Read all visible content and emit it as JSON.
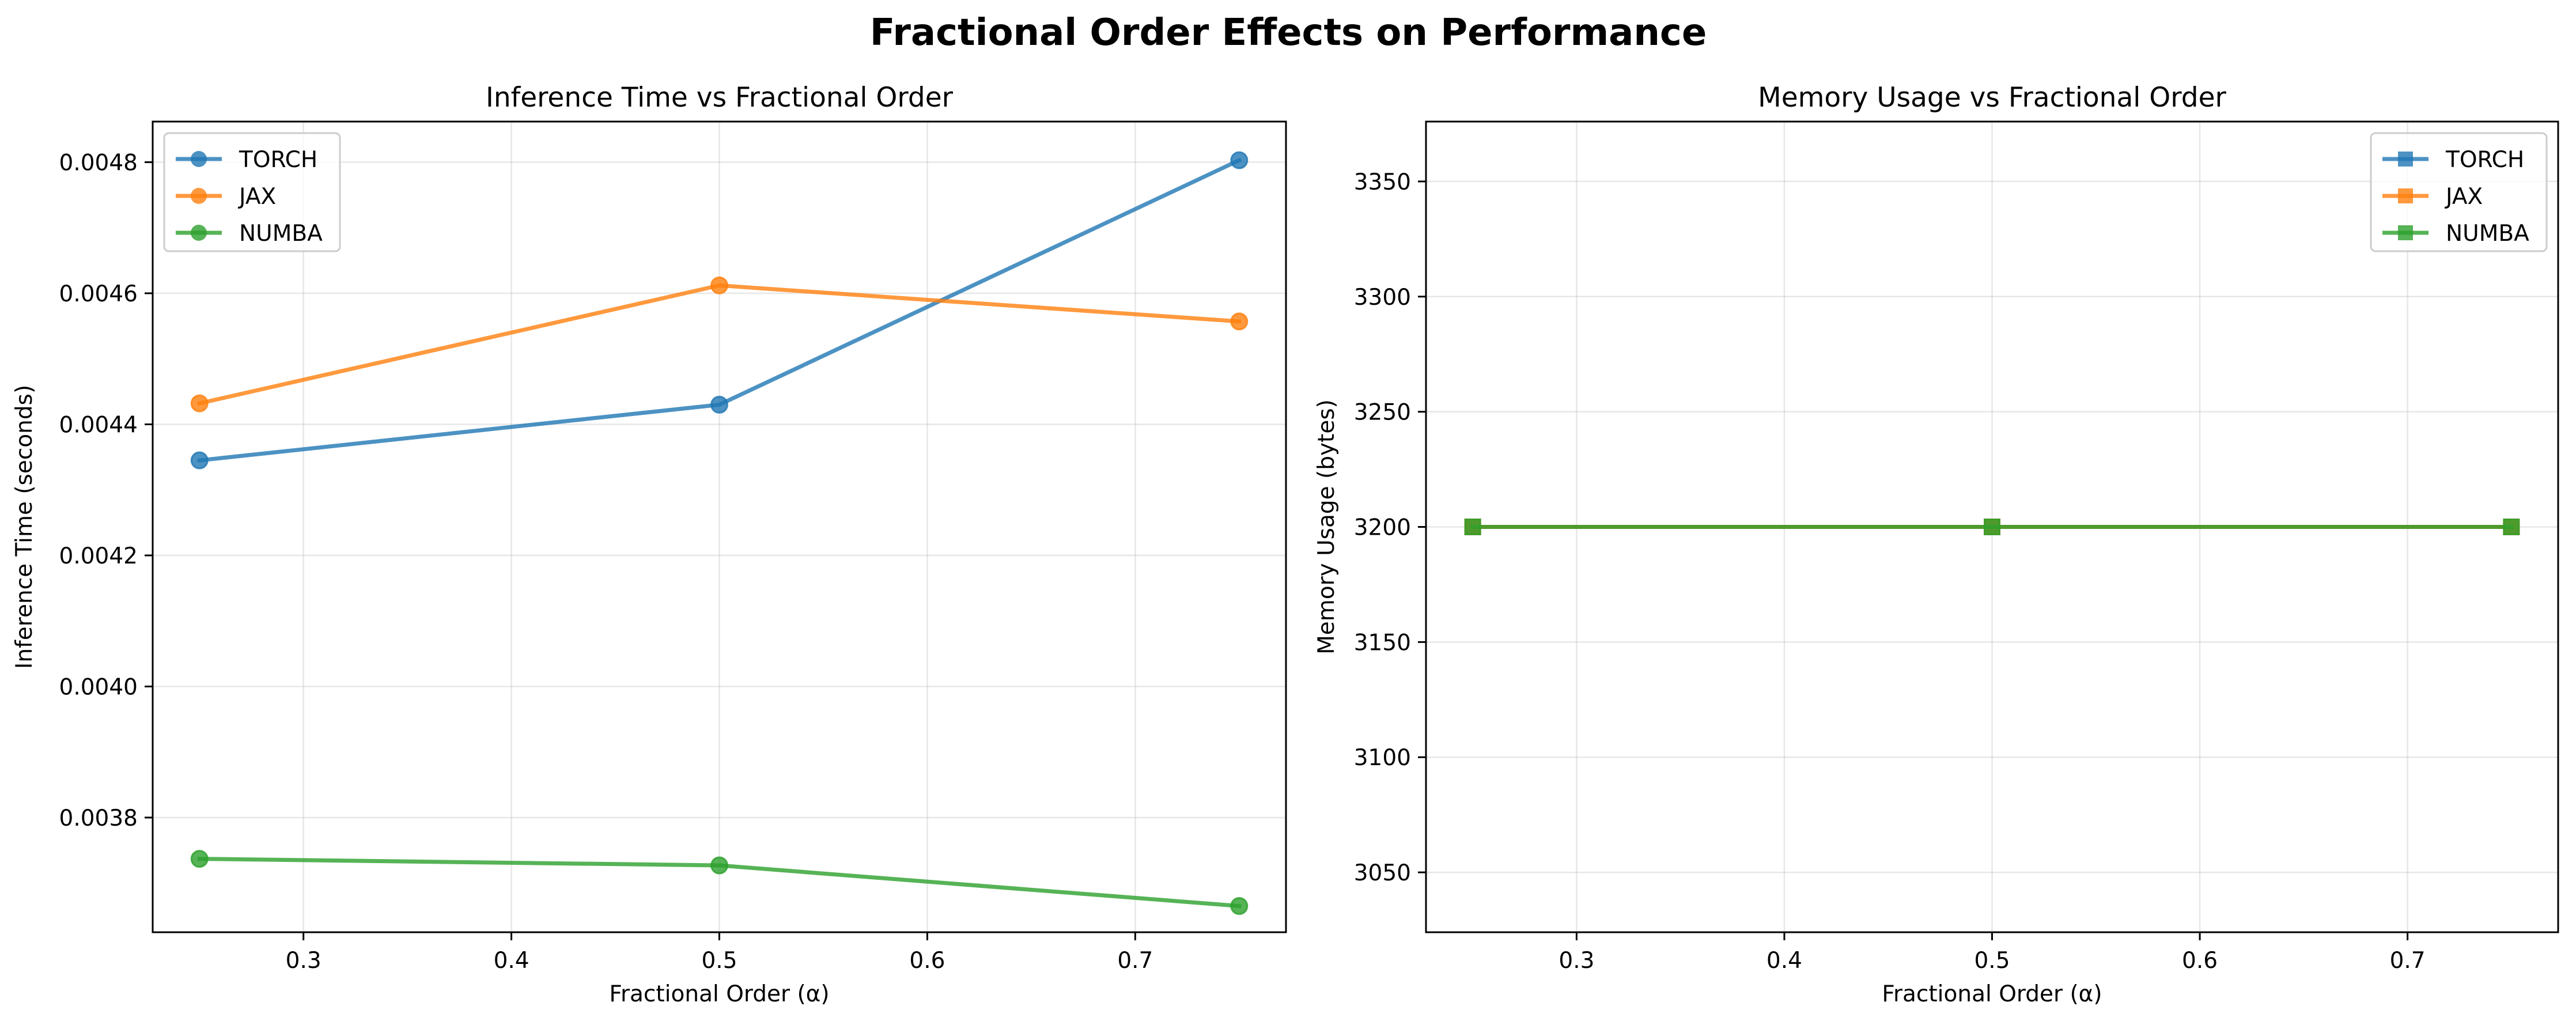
{
  "figure": {
    "suptitle": "Fractional Order Effects on Performance"
  },
  "chart_data": [
    {
      "type": "line",
      "title": "Inference Time vs Fractional Order",
      "xlabel": "Fractional Order (α)",
      "ylabel": "Inference Time (seconds)",
      "xlim": [
        0.2275,
        0.7725
      ],
      "ylim": [
        0.003625,
        0.004862
      ],
      "xticks": [
        0.3,
        0.4,
        0.5,
        0.6,
        0.7
      ],
      "xtick_labels": [
        "0.3",
        "0.4",
        "0.5",
        "0.6",
        "0.7"
      ],
      "yticks": [
        0.0038,
        0.004,
        0.0042,
        0.0044,
        0.0046,
        0.0048
      ],
      "ytick_labels": [
        "0.0038",
        "0.0040",
        "0.0042",
        "0.0044",
        "0.0046",
        "0.0048"
      ],
      "grid": true,
      "legend": "top-left",
      "marker": "circle",
      "x": [
        0.25,
        0.5,
        0.75
      ],
      "series": [
        {
          "name": "TORCH",
          "color": "#1f77b4",
          "values": [
            0.004345,
            0.00443,
            0.004803
          ]
        },
        {
          "name": "JAX",
          "color": "#ff7f0e",
          "values": [
            0.004432,
            0.004612,
            0.004557
          ]
        },
        {
          "name": "NUMBA",
          "color": "#2ca02c",
          "values": [
            0.003737,
            0.003727,
            0.003665
          ]
        }
      ]
    },
    {
      "type": "line",
      "title": "Memory Usage vs Fractional Order",
      "xlabel": "Fractional Order (α)",
      "ylabel": "Memory Usage (bytes)",
      "xlim": [
        0.2275,
        0.7725
      ],
      "ylim": [
        3024,
        3376
      ],
      "xticks": [
        0.3,
        0.4,
        0.5,
        0.6,
        0.7
      ],
      "xtick_labels": [
        "0.3",
        "0.4",
        "0.5",
        "0.6",
        "0.7"
      ],
      "yticks": [
        3050,
        3100,
        3150,
        3200,
        3250,
        3300,
        3350
      ],
      "ytick_labels": [
        "3050",
        "3100",
        "3150",
        "3200",
        "3250",
        "3300",
        "3350"
      ],
      "grid": true,
      "legend": "top-right",
      "marker": "square",
      "x": [
        0.25,
        0.5,
        0.75
      ],
      "series": [
        {
          "name": "TORCH",
          "color": "#1f77b4",
          "values": [
            3200,
            3200,
            3200
          ]
        },
        {
          "name": "JAX",
          "color": "#ff7f0e",
          "values": [
            3200,
            3200,
            3200
          ]
        },
        {
          "name": "NUMBA",
          "color": "#2ca02c",
          "values": [
            3200,
            3200,
            3200
          ]
        }
      ]
    }
  ]
}
